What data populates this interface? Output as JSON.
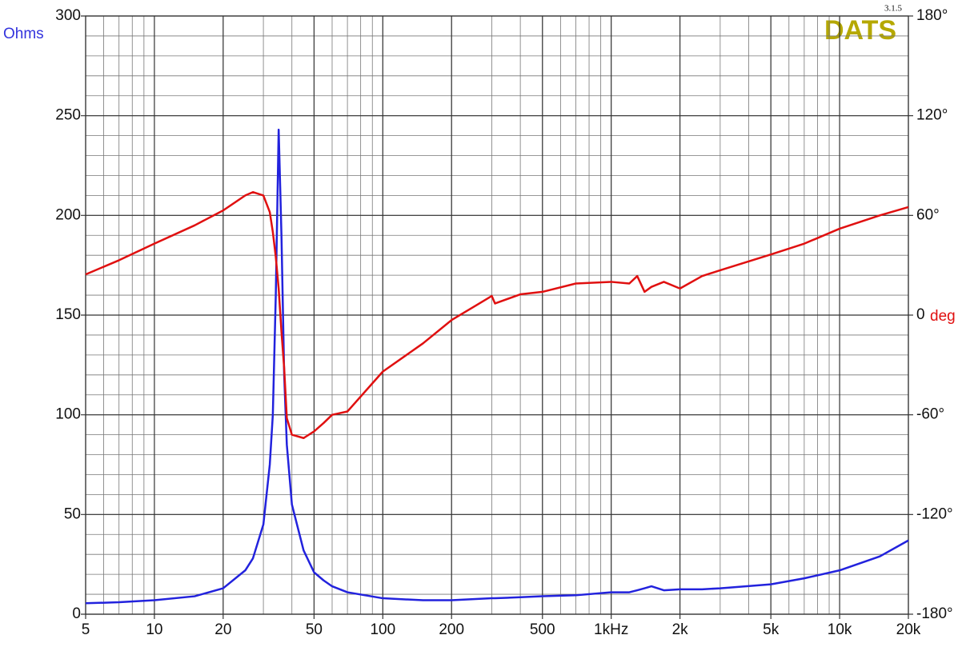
{
  "chart_data": {
    "type": "line",
    "y_label": "Ohms",
    "y2_label": "deg",
    "logo": "DATS",
    "version": "3.1.5",
    "xscale": "log",
    "grid": true,
    "minor_grid": true,
    "xlim": [
      5,
      20000
    ],
    "xticks": [
      5,
      10,
      20,
      50,
      100,
      200,
      500,
      {
        "value": 1000,
        "label": "1kHz"
      },
      {
        "value": 2000,
        "label": "2k"
      },
      {
        "value": 5000,
        "label": "5k"
      },
      {
        "value": 10000,
        "label": "10k"
      },
      {
        "value": 20000,
        "label": "20k"
      }
    ],
    "ylim": [
      0,
      300
    ],
    "yticks": [
      0,
      50,
      100,
      150,
      200,
      250,
      300
    ],
    "y2lim": [
      -180,
      180
    ],
    "y2ticks": [
      {
        "value": -180,
        "label": "-180°"
      },
      {
        "value": -120,
        "label": "-120°"
      },
      {
        "value": -60,
        "label": "-60°"
      },
      0,
      {
        "value": 60,
        "label": "60°"
      },
      {
        "value": 120,
        "label": "120°"
      },
      {
        "value": 180,
        "label": "180°"
      }
    ],
    "x": [
      5,
      7,
      10,
      15,
      20,
      25,
      27,
      30,
      32,
      33,
      34,
      35,
      36,
      37,
      38,
      40,
      45,
      50,
      55,
      60,
      70,
      100,
      150,
      200,
      300,
      310,
      400,
      500,
      700,
      1000,
      1200,
      1300,
      1400,
      1500,
      1700,
      2000,
      2500,
      3000,
      5000,
      7000,
      10000,
      15000,
      20000
    ],
    "series": [
      {
        "name": "Ohms",
        "color": "#2222dd",
        "axis": "y",
        "values": [
          5.5,
          6,
          7,
          9,
          13,
          22,
          28,
          45,
          75,
          100,
          160,
          243,
          190,
          120,
          85,
          55,
          32,
          21,
          17,
          14,
          11,
          8,
          7,
          7,
          8,
          8,
          8.5,
          9,
          9.5,
          11,
          11,
          12,
          13,
          14,
          12,
          12.5,
          12.5,
          13,
          15,
          18,
          22,
          29,
          37
        ]
      },
      {
        "name": "deg",
        "color": "#e01010",
        "axis": "y2",
        "values": [
          24.5,
          33,
          43,
          54,
          63,
          72,
          74,
          72,
          62,
          50,
          35,
          16,
          -10,
          -32,
          -62,
          -72,
          -74,
          -70,
          -65,
          -60,
          -58,
          -34,
          -17,
          -3,
          11.5,
          7,
          12.5,
          14,
          19,
          20,
          19,
          23.5,
          14,
          17,
          20,
          16,
          23.5,
          27,
          36.5,
          43,
          52,
          60,
          65
        ]
      }
    ]
  }
}
